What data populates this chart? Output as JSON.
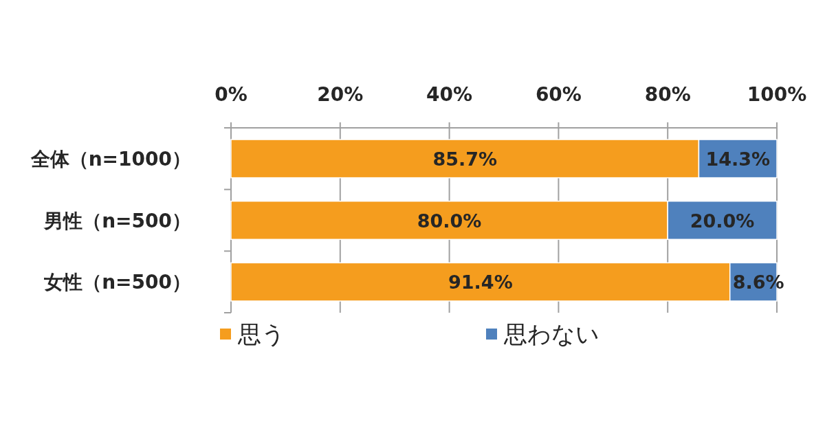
{
  "chart_data": {
    "type": "bar",
    "orientation": "horizontal",
    "stacked": true,
    "categories": [
      "全体（n=1000）",
      "男性（n=500）",
      "女性（n=500）"
    ],
    "series": [
      {
        "name": "思う",
        "color": "#f59d1e",
        "values": [
          85.7,
          80.0,
          91.4
        ],
        "value_labels": [
          "85.7%",
          "80.0%",
          "91.4%"
        ]
      },
      {
        "name": "思わない",
        "color": "#4f81bd",
        "values": [
          14.3,
          20.0,
          8.6
        ],
        "value_labels": [
          "14.3%",
          "20.0%",
          "8.6%"
        ]
      }
    ],
    "xlim": [
      0,
      100
    ],
    "xticks": [
      {
        "value": 0,
        "label": "0%"
      },
      {
        "value": 20,
        "label": "20%"
      },
      {
        "value": 40,
        "label": "40%"
      },
      {
        "value": 60,
        "label": "60%"
      },
      {
        "value": 80,
        "label": "80%"
      },
      {
        "value": 100,
        "label": "100%"
      }
    ],
    "grid": "x",
    "legend": "bottom"
  }
}
